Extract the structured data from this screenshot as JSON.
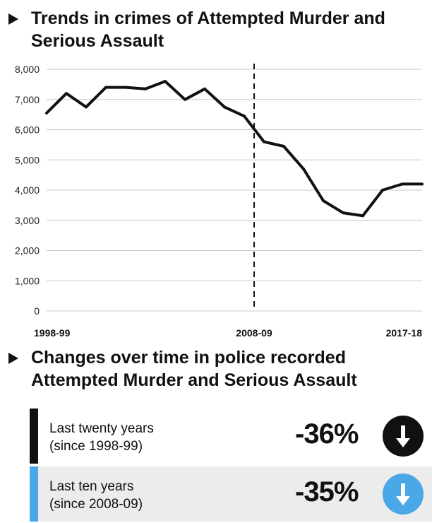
{
  "heading1": "Trends in crimes of Attempted Murder and Serious Assault",
  "heading2": "Changes over time in police recorded Attempted Murder and Serious Assault",
  "colors": {
    "line": "#111111",
    "grid": "#c8c8c8",
    "twenty_accent": "#111111",
    "ten_accent": "#4aa8e8"
  },
  "chart_data": {
    "type": "line",
    "title": "Trends in crimes of Attempted Murder and Serious Assault",
    "xlabel": "",
    "ylabel": "",
    "x": [
      "1998-99",
      "1999-00",
      "2000-01",
      "2001-02",
      "2002-03",
      "2003-04",
      "2004-05",
      "2005-06",
      "2006-07",
      "2007-08",
      "2008-09",
      "2009-10",
      "2010-11",
      "2011-12",
      "2012-13",
      "2013-14",
      "2014-15",
      "2015-16",
      "2016-17",
      "2017-18"
    ],
    "x_tick_labels": [
      "1998-99",
      "2008-09",
      "2017-18"
    ],
    "y_ticks": [
      "0",
      "1,000",
      "2,000",
      "3,000",
      "4,000",
      "5,000",
      "6,000",
      "7,000",
      "8,000"
    ],
    "ylim": [
      0,
      8000
    ],
    "grid": true,
    "series": [
      {
        "values": [
          6550,
          7200,
          6750,
          7400,
          7400,
          7350,
          7600,
          7000,
          7350,
          6750,
          6450,
          5600,
          5450,
          4700,
          3650,
          3250,
          3150,
          4000,
          4200,
          4200
        ]
      }
    ],
    "reference_line": {
      "x": "2008-09",
      "style": "dashed"
    }
  },
  "summary": {
    "rows": [
      {
        "label_line1": "Last twenty years",
        "label_line2": "(since 1998-99)",
        "percent": "-36%",
        "icon": "down-arrow-icon"
      },
      {
        "label_line1": "Last ten years",
        "label_line2": "(since 2008-09)",
        "percent": "-35%",
        "icon": "down-arrow-icon"
      }
    ]
  }
}
